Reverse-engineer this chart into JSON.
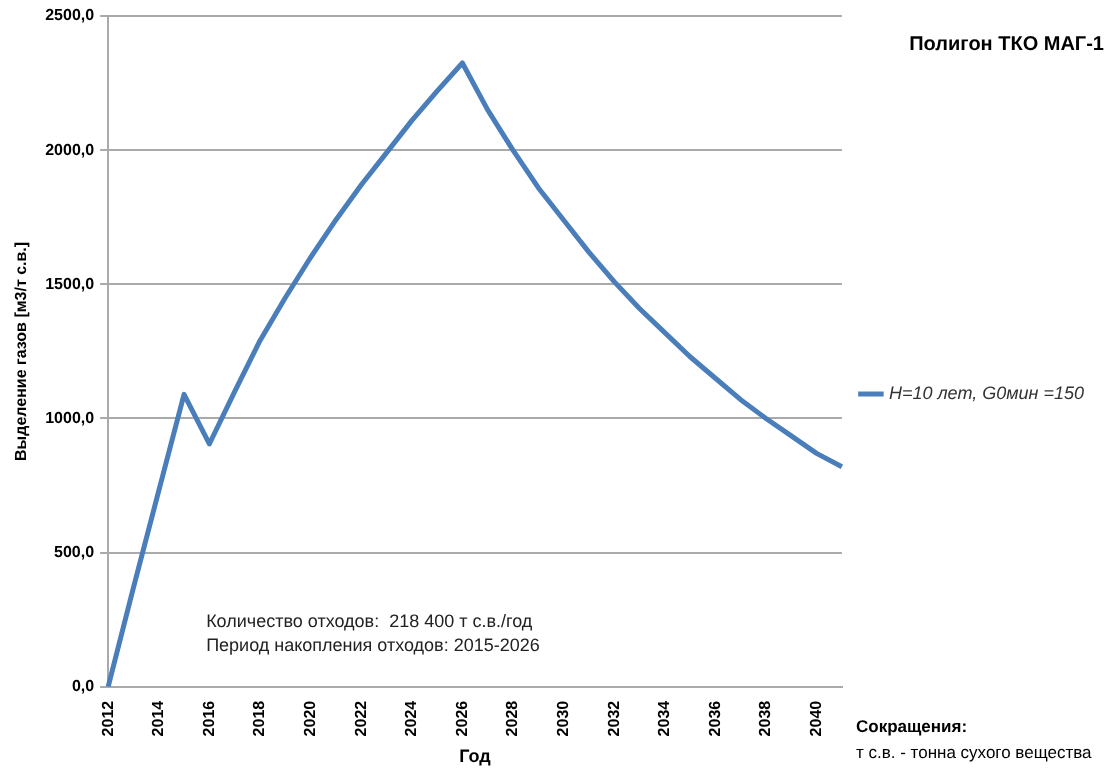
{
  "chart_data": {
    "type": "line",
    "title": "Полигон ТКО МАГ-1",
    "xlabel": "Год",
    "ylabel": "Выделение газов [м3/т с.в.]",
    "categories": [
      "2012",
      null,
      "2014",
      null,
      "2016",
      null,
      "2018",
      null,
      "2020",
      null,
      "2022",
      null,
      "2024",
      null,
      "2026",
      null,
      "2028",
      null,
      "2030",
      null,
      "2032",
      null,
      "2034",
      null,
      "2036",
      null,
      "2038",
      null,
      "2040",
      null
    ],
    "series": [
      {
        "name": "H=10 лет, G0мин =150",
        "color": "#4a7ebb",
        "values": [
          0,
          370,
          730,
          1090,
          905,
          1100,
          1290,
          1450,
          1600,
          1740,
          1870,
          1990,
          2110,
          2220,
          2325,
          2150,
          2000,
          1860,
          1740,
          1620,
          1510,
          1410,
          1320,
          1230,
          1150,
          1070,
          1000,
          935,
          870,
          820
        ]
      }
    ],
    "ylim": [
      0,
      2500
    ],
    "yticks": [
      {
        "value": 0,
        "label": "0,0"
      },
      {
        "value": 500,
        "label": "500,0"
      },
      {
        "value": 1000,
        "label": "1000,0"
      },
      {
        "value": 1500,
        "label": "1500,0"
      },
      {
        "value": 2000,
        "label": "2000,0"
      },
      {
        "value": 2500,
        "label": "2500,0"
      }
    ],
    "grid": "y",
    "legend": "right",
    "marker": "none",
    "line_style": "solid",
    "annotations": [
      "Количество отходов:  218 400 т с.в./год",
      "Период накопления отходов: 2015-2026",
      "Сокращения:",
      "т с.в. - тонна сухого вещества"
    ]
  }
}
